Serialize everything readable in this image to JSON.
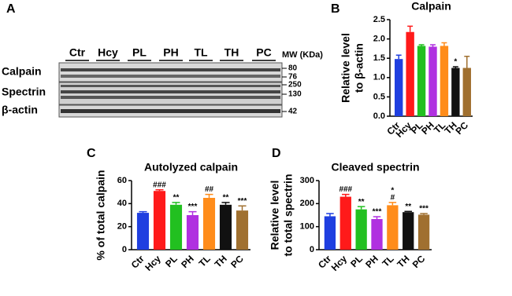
{
  "panels": [
    "A",
    "B",
    "C",
    "D"
  ],
  "blot": {
    "lanes": [
      "Ctr",
      "Hcy",
      "PL",
      "PH",
      "TL",
      "TH",
      "PC"
    ],
    "mw_header": "MW (KDa)",
    "rows": [
      "Calpain",
      "Spectrin",
      "β-actin"
    ],
    "mw_markers": [
      "80",
      "76",
      "250",
      "130",
      "42"
    ]
  },
  "chart_data": [
    {
      "type": "bar",
      "title": "Calpain",
      "ylabel": [
        "Relative level",
        "to β-actin"
      ],
      "categories": [
        "Ctr",
        "Hcy",
        "PL",
        "PH",
        "TL",
        "TH",
        "PC"
      ],
      "values": [
        1.48,
        2.18,
        1.82,
        1.8,
        1.82,
        1.25,
        1.25
      ],
      "errors": [
        0.1,
        0.15,
        0.03,
        0.05,
        0.08,
        0.03,
        0.3
      ],
      "colors": [
        "#1f3fe0",
        "#ff1a1a",
        "#22c020",
        "#b030e0",
        "#ff8c1a",
        "#111111",
        "#a07030"
      ],
      "annotations": [
        null,
        null,
        null,
        null,
        null,
        [
          "*"
        ],
        null
      ],
      "ylim": [
        0,
        2.5
      ],
      "yticks": [
        {
          "value": 0,
          "label": "0.0"
        },
        0.5,
        {
          "value": 1,
          "label": "1.0"
        },
        1.5,
        {
          "value": 2,
          "label": "2.0"
        },
        2.5
      ]
    },
    {
      "type": "bar",
      "title": "Autolyzed calpain",
      "ylabel": [
        "% of total calpain"
      ],
      "categories": [
        "Ctr",
        "Hcy",
        "PL",
        "PH",
        "TL",
        "TH",
        "PC"
      ],
      "values": [
        32,
        51,
        39,
        30,
        45,
        39,
        34
      ],
      "errors": [
        1,
        1,
        2,
        3,
        3,
        2,
        4
      ],
      "colors": [
        "#1f3fe0",
        "#ff1a1a",
        "#22c020",
        "#b030e0",
        "#ff8c1a",
        "#111111",
        "#a07030"
      ],
      "annotations": [
        null,
        [
          "###"
        ],
        [
          "**"
        ],
        [
          "***"
        ],
        [
          "##"
        ],
        [
          "**"
        ],
        [
          "***"
        ]
      ],
      "ylim": [
        0,
        60
      ],
      "yticks": [
        0,
        20,
        40,
        60
      ]
    },
    {
      "type": "bar",
      "title": "Cleaved spectrin",
      "ylabel": [
        "Relative level",
        "to total spectrin"
      ],
      "categories": [
        "Ctr",
        "Hcy",
        "PL",
        "PH",
        "TL",
        "TH",
        "PC"
      ],
      "values": [
        145,
        230,
        175,
        133,
        193,
        163,
        152
      ],
      "errors": [
        12,
        10,
        12,
        10,
        12,
        3,
        5
      ],
      "colors": [
        "#1f3fe0",
        "#ff1a1a",
        "#22c020",
        "#b030e0",
        "#ff8c1a",
        "#111111",
        "#a07030"
      ],
      "annotations": [
        null,
        [
          "###"
        ],
        [
          "**"
        ],
        [
          "***"
        ],
        [
          "*",
          "#"
        ],
        [
          "**"
        ],
        [
          "***"
        ]
      ],
      "ylim": [
        0,
        300
      ],
      "yticks": [
        0,
        100,
        200,
        300
      ]
    }
  ]
}
